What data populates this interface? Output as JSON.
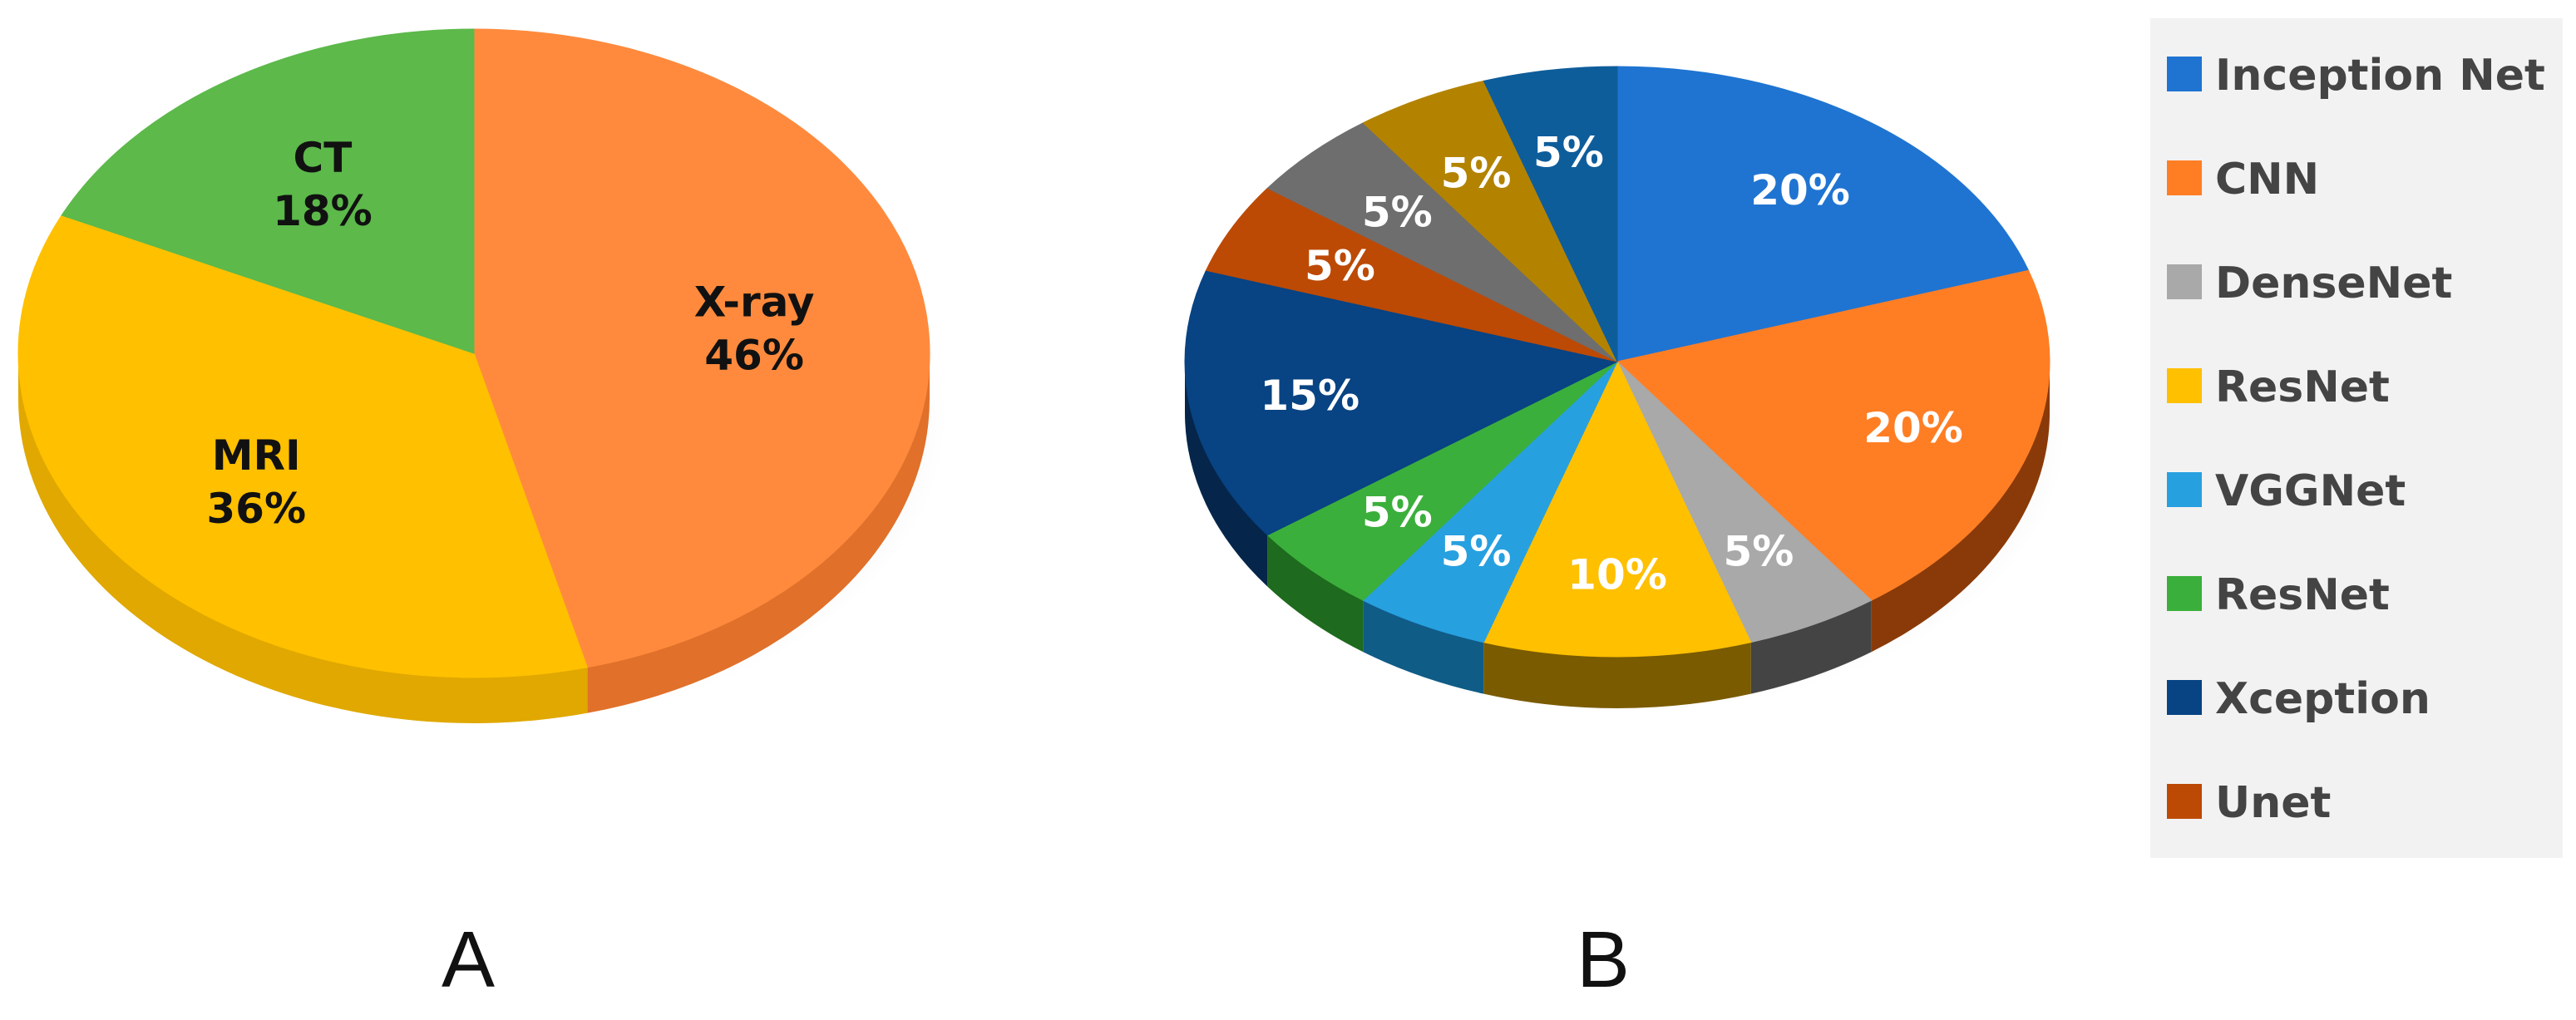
{
  "chart_data": [
    {
      "type": "pie",
      "panel": "A",
      "title": "",
      "slices": [
        {
          "label": "X-ray",
          "value": 46,
          "display": "46%",
          "color": "#FF8A3D",
          "side": "#E0702A",
          "text_color": "#111111"
        },
        {
          "label": "MRI",
          "value": 36,
          "display": "36%",
          "color": "#FFC000",
          "side": "#E0A800",
          "text_color": "#111111"
        },
        {
          "label": "CT",
          "value": 18,
          "display": "18%",
          "color": "#5CB94A",
          "side": "#3F8E30",
          "text_color": "#111111"
        }
      ]
    },
    {
      "type": "pie",
      "panel": "B",
      "title": "",
      "legend_position": "right",
      "legend": [
        "Inception Net",
        "CNN",
        "DenseNet",
        "ResNet",
        "VGGNet",
        "ResNet",
        "Xception",
        "Unet"
      ],
      "slices": [
        {
          "value": 20,
          "display": "20%",
          "color": "#1F74D1",
          "side": "#13457E"
        },
        {
          "value": 20,
          "display": "20%",
          "color": "#FF7E24",
          "side": "#8A3A08"
        },
        {
          "value": 5,
          "display": "5%",
          "color": "#A9A9A9",
          "side": "#444444"
        },
        {
          "value": 10,
          "display": "10%",
          "color": "#FFC000",
          "side": "#7A5B00"
        },
        {
          "value": 5,
          "display": "5%",
          "color": "#27A0E0",
          "side": "#0F5C87"
        },
        {
          "value": 5,
          "display": "5%",
          "color": "#3BAF3B",
          "side": "#1E6A1E"
        },
        {
          "value": 15,
          "display": "15%",
          "color": "#084383",
          "side": "#05264A"
        },
        {
          "value": 5,
          "display": "5%",
          "color": "#BC4A05",
          "side": "#6E2902"
        },
        {
          "value": 5,
          "display": "5%",
          "color": "#6E6E6E",
          "side": "#3A3A3A"
        },
        {
          "value": 5,
          "display": "5%",
          "color": "#B38300",
          "side": "#6A4D00"
        },
        {
          "value": 5,
          "display": "5%",
          "color": "#0E5D9B",
          "side": "#07365A"
        }
      ],
      "legend_colors": [
        "#1F74D1",
        "#FF7E24",
        "#A9A9A9",
        "#FFC000",
        "#27A0E0",
        "#3BAF3B",
        "#084383",
        "#BC4A05"
      ]
    }
  ],
  "panel_labels": {
    "a": "A",
    "b": "B"
  }
}
